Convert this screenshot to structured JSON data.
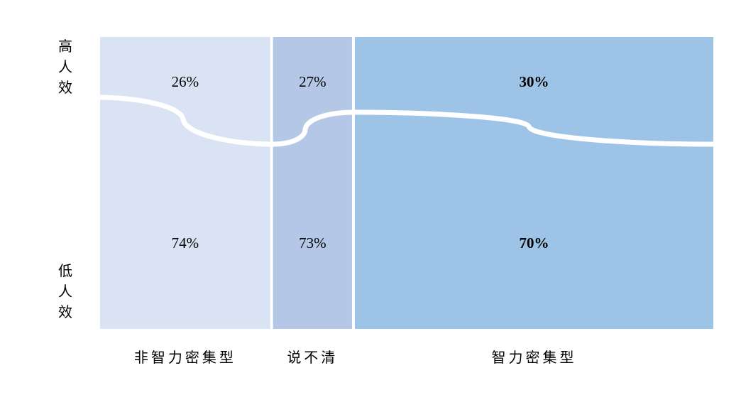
{
  "chart_data": {
    "type": "marimekko",
    "y_labels": {
      "top": "高人效",
      "bottom": "低人效"
    },
    "categories": [
      "非智力密集型",
      "说不清",
      "智力密集型"
    ],
    "column_width_share": [
      0.28,
      0.13,
      0.59
    ],
    "series": [
      {
        "name": "高人效",
        "values": [
          26,
          27,
          30
        ],
        "labels": [
          "26%",
          "27%",
          "30%"
        ]
      },
      {
        "name": "低人效",
        "values": [
          74,
          73,
          70
        ],
        "labels": [
          "74%",
          "73%",
          "70%"
        ]
      }
    ],
    "colors": [
      "#dae3f3",
      "#b4c7e7",
      "#9dc3e6"
    ],
    "bold_category": "智力密集型"
  }
}
